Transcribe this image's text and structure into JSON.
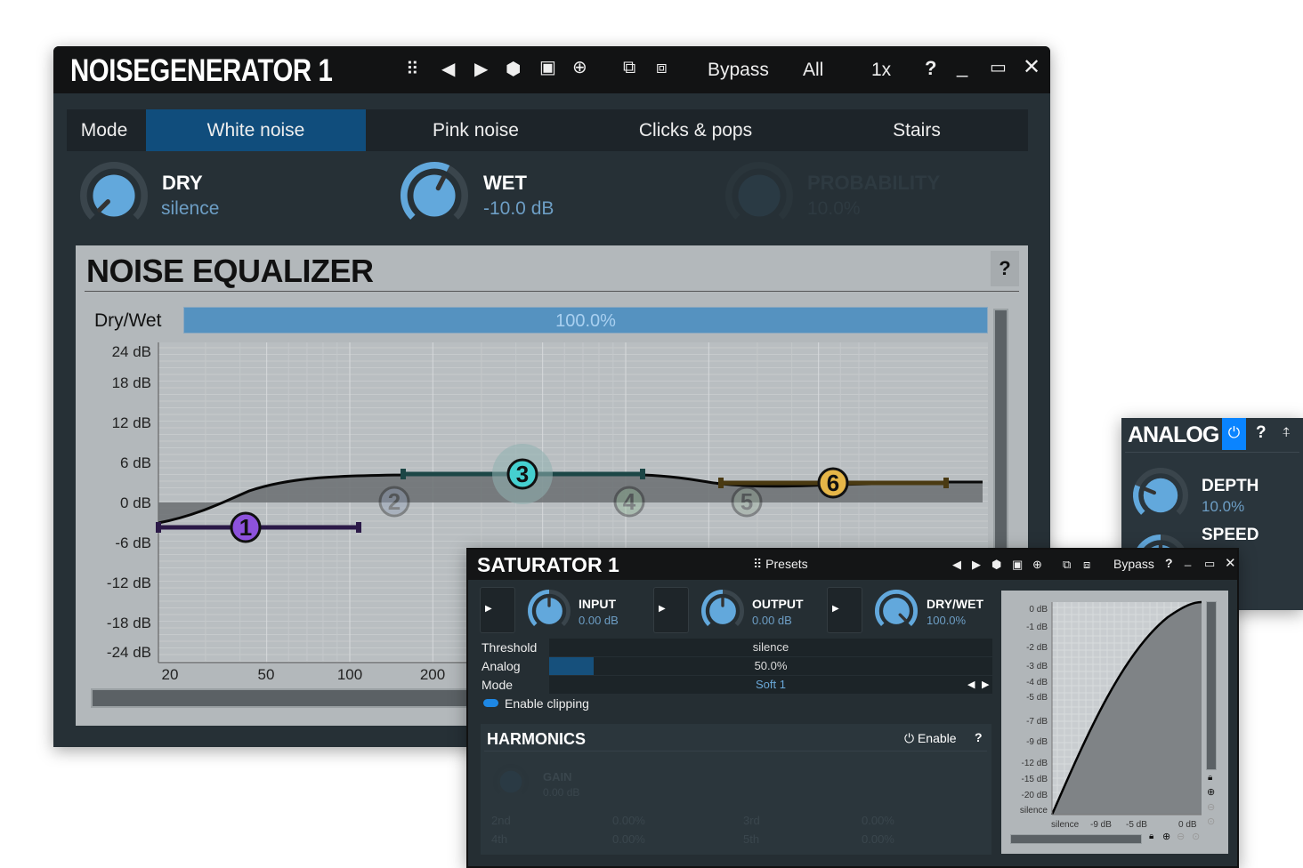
{
  "main": {
    "title": "NOISEGENERATOR 1",
    "toolbar": {
      "bypass": "Bypass",
      "all": "All",
      "zoom": "1x",
      "help": "?"
    },
    "mode_label": "Mode",
    "tabs": [
      {
        "label": "White noise",
        "selected": true
      },
      {
        "label": "Pink noise"
      },
      {
        "label": "Clicks & pops"
      },
      {
        "label": "Stairs"
      }
    ],
    "knobs": [
      {
        "label": "DRY",
        "value": "silence",
        "level": 0
      },
      {
        "label": "WET",
        "value": "-10.0 dB",
        "level": 0.6
      },
      {
        "label": "PROBABILITY",
        "value": "10.0%",
        "disabled": true
      }
    ],
    "eq": {
      "title": "NOISE EQUALIZER",
      "help": "?",
      "drywet_label": "Dry/Wet",
      "drywet_value": "100.0%",
      "y_ticks": [
        "24 dB",
        "18 dB",
        "12 dB",
        "6 dB",
        "0 dB",
        "-6 dB",
        "-12 dB",
        "-18 dB",
        "-24 dB"
      ],
      "x_ticks": [
        "20",
        "50",
        "100",
        "200"
      ],
      "nodes": [
        {
          "label": "1",
          "color": "#8d52dc",
          "active": true
        },
        {
          "label": "2",
          "color": "#8a9ab8",
          "active": false
        },
        {
          "label": "3",
          "color": "#45d0d0",
          "active": true
        },
        {
          "label": "4",
          "color": "#8ab890",
          "active": false
        },
        {
          "label": "5",
          "color": "#98ae98",
          "active": false
        },
        {
          "label": "6",
          "color": "#e6b648",
          "active": true
        }
      ]
    }
  },
  "saturator": {
    "title": "SATURATOR 1",
    "presets": "Presets",
    "bypass": "Bypass",
    "help": "?",
    "knobs": [
      {
        "label": "INPUT",
        "value": "0.00 dB",
        "level": 0.5
      },
      {
        "label": "OUTPUT",
        "value": "0.00 dB",
        "level": 0.5
      },
      {
        "label": "DRY/WET",
        "value": "100.0%",
        "level": 1
      }
    ],
    "threshold": {
      "label": "Threshold",
      "value": "silence"
    },
    "analog": {
      "label": "Analog",
      "value": "50.0%",
      "level": 0.1
    },
    "mode": {
      "label": "Mode",
      "value": "Soft 1"
    },
    "enable_clipping": {
      "label": "Enable clipping",
      "on": true
    },
    "harmonics": {
      "title": "HARMONICS",
      "enable": "Enable",
      "help": "?",
      "gain_label": "GAIN",
      "gain_value": "0.00 dB",
      "rows": [
        [
          "2nd",
          "0.00%",
          "3rd",
          "0.00%"
        ],
        [
          "4th",
          "0.00%",
          "5th",
          "0.00%"
        ]
      ]
    },
    "graph": {
      "y_ticks": [
        "0 dB",
        "-1 dB",
        "-2 dB",
        "-3 dB",
        "-4 dB",
        "-5 dB",
        "-7 dB",
        "-9 dB",
        "-12 dB",
        "-15 dB",
        "-20 dB",
        "silence"
      ],
      "x_ticks": [
        "silence",
        "-9 dB",
        "-5 dB",
        "0 dB"
      ]
    }
  },
  "analog_panel": {
    "title": "ANALOG",
    "help": "?",
    "power_color": "#0a84ff",
    "depth": {
      "label": "DEPTH",
      "value": "10.0%",
      "level": 0.25
    },
    "speed": {
      "label": "SPEED"
    }
  },
  "colors": {
    "accent": "#62a8dc",
    "tab_selected": "#104d7c",
    "drywet_bar": "#5592c0"
  }
}
